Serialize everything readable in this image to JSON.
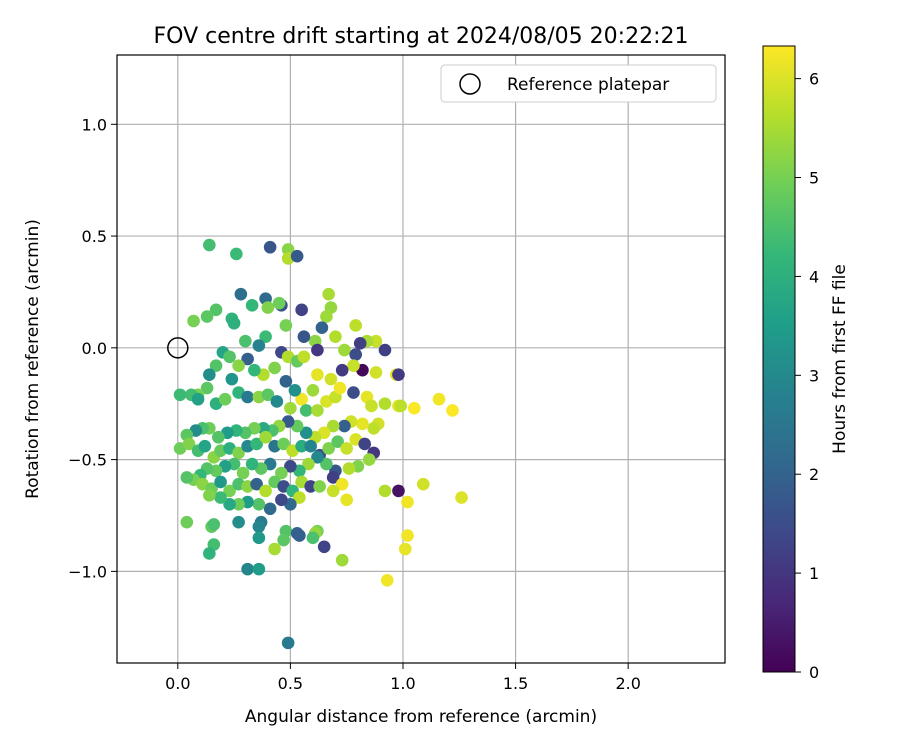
{
  "chart_data": {
    "type": "scatter",
    "title": "FOV centre drift starting at 2024/08/05 20:22:21",
    "xlabel": "Angular distance from reference (arcmin)",
    "ylabel": "Rotation from reference (arcmin)",
    "xlim": [
      -0.27,
      2.43
    ],
    "ylim": [
      -1.41,
      1.31
    ],
    "xticks": [
      0.0,
      0.5,
      1.0,
      1.5,
      2.0
    ],
    "xtick_labels": [
      "0.0",
      "0.5",
      "1.0",
      "1.5",
      "2.0"
    ],
    "yticks": [
      -1.0,
      -0.5,
      0.0,
      0.5,
      1.0
    ],
    "ytick_labels": [
      "−1.0",
      "−0.5",
      "0.0",
      "0.5",
      "1.0"
    ],
    "grid": true,
    "legend": {
      "position": "top-right",
      "entries": [
        "Reference platepar"
      ]
    },
    "reference_point": {
      "x": 0.0,
      "y": 0.0
    },
    "colorbar": {
      "label": "Hours from first FF file",
      "range": [
        0,
        6.33
      ],
      "ticks": [
        0,
        1,
        2,
        3,
        4,
        5,
        6
      ],
      "tick_labels": [
        "0",
        "1",
        "2",
        "3",
        "4",
        "5",
        "6"
      ],
      "colormap": "viridis"
    },
    "colormap_stops": [
      "#440154",
      "#482878",
      "#3e4989",
      "#31688e",
      "#26828e",
      "#1f9e89",
      "#35b779",
      "#6ece58",
      "#b5de2b",
      "#fde725"
    ],
    "points": [
      [
        0.14,
        0.46,
        4.4
      ],
      [
        0.26,
        0.42,
        4.3
      ],
      [
        0.41,
        0.45,
        1.7
      ],
      [
        0.49,
        0.44,
        5.2
      ],
      [
        0.49,
        0.4,
        5.6
      ],
      [
        0.53,
        0.41,
        1.8
      ],
      [
        0.28,
        0.24,
        2.3
      ],
      [
        0.67,
        0.24,
        5.5
      ],
      [
        0.39,
        0.22,
        2.2
      ],
      [
        0.46,
        0.19,
        1.6
      ],
      [
        0.45,
        0.2,
        4.9
      ],
      [
        0.33,
        0.19,
        4.2
      ],
      [
        0.07,
        0.12,
        5.0
      ],
      [
        0.17,
        0.17,
        4.6
      ],
      [
        0.13,
        0.14,
        4.7
      ],
      [
        0.24,
        0.13,
        4.1
      ],
      [
        0.25,
        0.11,
        4.0
      ],
      [
        0.4,
        0.18,
        5.1
      ],
      [
        0.55,
        0.17,
        1.3
      ],
      [
        0.68,
        0.18,
        5.3
      ],
      [
        0.66,
        0.14,
        5.4
      ],
      [
        0.79,
        0.1,
        5.7
      ],
      [
        0.88,
        0.03,
        5.8
      ],
      [
        0.92,
        -0.01,
        1.2
      ],
      [
        0.84,
        0.03,
        5.5
      ],
      [
        0.64,
        0.09,
        2.0
      ],
      [
        0.7,
        0.05,
        5.6
      ],
      [
        0.61,
        0.03,
        5.2
      ],
      [
        0.56,
        0.05,
        1.7
      ],
      [
        0.48,
        0.1,
        5.0
      ],
      [
        0.39,
        0.05,
        4.3
      ],
      [
        0.36,
        0.01,
        2.8
      ],
      [
        0.3,
        0.03,
        4.5
      ],
      [
        0.2,
        -0.02,
        3.7
      ],
      [
        0.23,
        -0.04,
        4.6
      ],
      [
        0.31,
        -0.05,
        1.9
      ],
      [
        0.46,
        -0.02,
        1.4
      ],
      [
        0.49,
        -0.04,
        5.6
      ],
      [
        0.53,
        -0.06,
        4.8
      ],
      [
        0.56,
        -0.04,
        5.7
      ],
      [
        0.62,
        -0.01,
        1.0
      ],
      [
        0.74,
        -0.01,
        5.4
      ],
      [
        0.79,
        -0.03,
        1.5
      ],
      [
        0.81,
        0.02,
        1.2
      ],
      [
        0.97,
        -0.12,
        6.1
      ],
      [
        0.98,
        -0.12,
        1.1
      ],
      [
        0.88,
        -0.11,
        5.9
      ],
      [
        0.82,
        -0.1,
        0.1
      ],
      [
        0.78,
        -0.08,
        5.8
      ],
      [
        0.73,
        -0.1,
        1.1
      ],
      [
        0.68,
        -0.14,
        5.9
      ],
      [
        0.62,
        -0.12,
        6.1
      ],
      [
        0.6,
        -0.19,
        5.4
      ],
      [
        0.55,
        -0.23,
        6.2
      ],
      [
        0.52,
        -0.19,
        3.2
      ],
      [
        0.48,
        -0.15,
        2.0
      ],
      [
        0.43,
        -0.09,
        5.1
      ],
      [
        0.38,
        -0.12,
        5.6
      ],
      [
        0.34,
        -0.1,
        4.2
      ],
      [
        0.27,
        -0.08,
        5.2
      ],
      [
        0.24,
        -0.14,
        3.3
      ],
      [
        0.17,
        -0.08,
        4.6
      ],
      [
        0.14,
        -0.12,
        3.1
      ],
      [
        0.13,
        -0.18,
        4.7
      ],
      [
        0.09,
        -0.21,
        5.0
      ],
      [
        0.06,
        -0.21,
        4.4
      ],
      [
        0.01,
        -0.21,
        4.3
      ],
      [
        0.09,
        -0.23,
        3.6
      ],
      [
        0.17,
        -0.25,
        4.0
      ],
      [
        0.21,
        -0.23,
        4.9
      ],
      [
        0.27,
        -0.2,
        4.1
      ],
      [
        0.31,
        -0.22,
        2.6
      ],
      [
        0.36,
        -0.22,
        5.2
      ],
      [
        0.4,
        -0.21,
        4.7
      ],
      [
        0.44,
        -0.24,
        3.0
      ],
      [
        0.5,
        -0.27,
        5.4
      ],
      [
        0.57,
        -0.28,
        4.4
      ],
      [
        0.62,
        -0.28,
        5.5
      ],
      [
        0.66,
        -0.24,
        6.0
      ],
      [
        0.7,
        -0.22,
        5.8
      ],
      [
        0.72,
        -0.18,
        6.2
      ],
      [
        0.78,
        -0.2,
        1.5
      ],
      [
        0.84,
        -0.22,
        6.1
      ],
      [
        0.86,
        -0.26,
        5.8
      ],
      [
        0.92,
        -0.25,
        5.6
      ],
      [
        0.98,
        -0.26,
        6.1
      ],
      [
        1.05,
        -0.27,
        6.3
      ],
      [
        1.16,
        -0.23,
        6.2
      ],
      [
        1.22,
        -0.28,
        6.3
      ],
      [
        0.99,
        -0.26,
        5.7
      ],
      [
        0.89,
        -0.34,
        5.9
      ],
      [
        0.87,
        -0.36,
        5.7
      ],
      [
        0.82,
        -0.34,
        6.1
      ],
      [
        0.77,
        -0.33,
        5.9
      ],
      [
        0.74,
        -0.35,
        1.9
      ],
      [
        0.69,
        -0.35,
        5.5
      ],
      [
        0.65,
        -0.38,
        6.0
      ],
      [
        0.61,
        -0.4,
        5.7
      ],
      [
        0.57,
        -0.38,
        3.2
      ],
      [
        0.53,
        -0.35,
        4.8
      ],
      [
        0.49,
        -0.33,
        1.8
      ],
      [
        0.45,
        -0.35,
        5.3
      ],
      [
        0.42,
        -0.37,
        4.5
      ],
      [
        0.38,
        -0.36,
        3.8
      ],
      [
        0.34,
        -0.36,
        5.0
      ],
      [
        0.3,
        -0.38,
        4.6
      ],
      [
        0.26,
        -0.37,
        4.1
      ],
      [
        0.22,
        -0.38,
        3.5
      ],
      [
        0.18,
        -0.4,
        4.6
      ],
      [
        0.14,
        -0.36,
        4.9
      ],
      [
        0.11,
        -0.36,
        4.5
      ],
      [
        0.08,
        -0.37,
        3.1
      ],
      [
        0.04,
        -0.39,
        4.7
      ],
      [
        0.01,
        -0.45,
        4.9
      ],
      [
        0.05,
        -0.43,
        5.1
      ],
      [
        0.09,
        -0.46,
        4.4
      ],
      [
        0.12,
        -0.44,
        3.7
      ],
      [
        0.16,
        -0.49,
        5.2
      ],
      [
        0.19,
        -0.46,
        4.8
      ],
      [
        0.23,
        -0.45,
        4.0
      ],
      [
        0.27,
        -0.47,
        5.1
      ],
      [
        0.31,
        -0.44,
        3.0
      ],
      [
        0.35,
        -0.43,
        4.2
      ],
      [
        0.39,
        -0.4,
        5.4
      ],
      [
        0.43,
        -0.44,
        2.4
      ],
      [
        0.47,
        -0.43,
        4.9
      ],
      [
        0.51,
        -0.46,
        5.7
      ],
      [
        0.55,
        -0.44,
        3.9
      ],
      [
        0.59,
        -0.44,
        2.9
      ],
      [
        0.63,
        -0.48,
        1.6
      ],
      [
        0.67,
        -0.45,
        5.1
      ],
      [
        0.71,
        -0.42,
        4.7
      ],
      [
        0.75,
        -0.45,
        5.8
      ],
      [
        0.79,
        -0.41,
        6.0
      ],
      [
        0.83,
        -0.43,
        1.3
      ],
      [
        0.87,
        -0.47,
        1.0
      ],
      [
        0.85,
        -0.5,
        5.3
      ],
      [
        0.8,
        -0.53,
        5.1
      ],
      [
        0.76,
        -0.54,
        5.6
      ],
      [
        0.7,
        -0.55,
        1.7
      ],
      [
        0.66,
        -0.52,
        4.6
      ],
      [
        0.62,
        -0.49,
        3.0
      ],
      [
        0.58,
        -0.52,
        5.4
      ],
      [
        0.54,
        -0.55,
        4.2
      ],
      [
        0.5,
        -0.53,
        1.4
      ],
      [
        0.46,
        -0.56,
        5.0
      ],
      [
        0.41,
        -0.52,
        2.6
      ],
      [
        0.37,
        -0.54,
        4.7
      ],
      [
        0.33,
        -0.52,
        4.1
      ],
      [
        0.29,
        -0.56,
        5.0
      ],
      [
        0.25,
        -0.52,
        4.4
      ],
      [
        0.21,
        -0.53,
        3.6
      ],
      [
        0.17,
        -0.55,
        4.8
      ],
      [
        0.13,
        -0.54,
        4.6
      ],
      [
        0.1,
        -0.57,
        4.2
      ],
      [
        0.07,
        -0.59,
        5.0
      ],
      [
        0.04,
        -0.58,
        4.6
      ],
      [
        0.11,
        -0.61,
        5.2
      ],
      [
        0.15,
        -0.63,
        4.9
      ],
      [
        0.19,
        -0.6,
        3.4
      ],
      [
        0.23,
        -0.64,
        5.0
      ],
      [
        0.27,
        -0.61,
        4.5
      ],
      [
        0.31,
        -0.62,
        5.2
      ],
      [
        0.35,
        -0.61,
        2.0
      ],
      [
        0.39,
        -0.64,
        5.6
      ],
      [
        0.43,
        -0.6,
        4.8
      ],
      [
        0.47,
        -0.62,
        1.5
      ],
      [
        0.51,
        -0.64,
        4.1
      ],
      [
        0.55,
        -0.6,
        5.5
      ],
      [
        0.59,
        -0.62,
        1.3
      ],
      [
        0.63,
        -0.62,
        5.1
      ],
      [
        0.69,
        -0.58,
        1.2
      ],
      [
        0.73,
        -0.61,
        6.2
      ],
      [
        0.75,
        -0.68,
        6.1
      ],
      [
        0.69,
        -0.64,
        5.8
      ],
      [
        0.92,
        -0.64,
        5.6
      ],
      [
        0.98,
        -0.64,
        0.3
      ],
      [
        1.02,
        -0.69,
        6.2
      ],
      [
        1.09,
        -0.61,
        5.9
      ],
      [
        1.26,
        -0.67,
        6.0
      ],
      [
        0.54,
        -0.67,
        5.7
      ],
      [
        0.5,
        -0.7,
        2.1
      ],
      [
        0.46,
        -0.68,
        1.4
      ],
      [
        0.41,
        -0.72,
        2.2
      ],
      [
        0.36,
        -0.7,
        4.6
      ],
      [
        0.31,
        -0.69,
        3.5
      ],
      [
        0.27,
        -0.7,
        4.9
      ],
      [
        0.23,
        -0.7,
        3.8
      ],
      [
        0.19,
        -0.67,
        4.3
      ],
      [
        0.14,
        -0.66,
        5.1
      ],
      [
        0.27,
        -0.78,
        3.1
      ],
      [
        0.37,
        -0.78,
        2.6
      ],
      [
        0.36,
        -0.8,
        2.9
      ],
      [
        0.15,
        -0.8,
        4.8
      ],
      [
        0.16,
        -0.79,
        4.5
      ],
      [
        0.04,
        -0.78,
        4.9
      ],
      [
        0.48,
        -0.82,
        4.6
      ],
      [
        0.53,
        -0.83,
        2.0
      ],
      [
        0.54,
        -0.84,
        1.9
      ],
      [
        0.62,
        -0.82,
        5.0
      ],
      [
        0.61,
        -0.83,
        5.3
      ],
      [
        0.65,
        -0.89,
        1.3
      ],
      [
        0.6,
        -0.85,
        4.5
      ],
      [
        0.36,
        -0.85,
        3.4
      ],
      [
        0.47,
        -0.86,
        4.7
      ],
      [
        0.43,
        -0.9,
        5.5
      ],
      [
        0.16,
        -0.88,
        4.4
      ],
      [
        0.14,
        -0.92,
        4.1
      ],
      [
        0.73,
        -0.95,
        5.4
      ],
      [
        1.02,
        -0.84,
        6.2
      ],
      [
        1.01,
        -0.9,
        6.1
      ],
      [
        0.31,
        -0.99,
        2.9
      ],
      [
        0.36,
        -0.99,
        3.5
      ],
      [
        0.93,
        -1.04,
        6.2
      ],
      [
        0.49,
        -1.32,
        2.6
      ]
    ]
  }
}
